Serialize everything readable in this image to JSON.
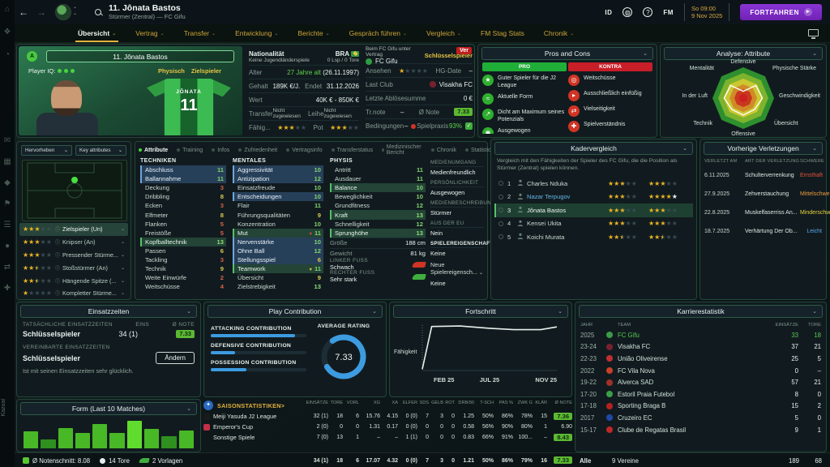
{
  "topbar": {
    "title": "11. Jônata Bastos",
    "subtitle": "Stürmer (Zentral) — FC Gifu",
    "id": "ID",
    "help": "?",
    "fm": "FM",
    "time": "So 09:00",
    "date": "9 Nov 2025",
    "continue_label": "FORTFAHREN"
  },
  "nav": {
    "tabs": [
      {
        "label": "Übersicht",
        "caret": true,
        "active": true
      },
      {
        "label": "Vertrag",
        "caret": true
      },
      {
        "label": "Transfer",
        "caret": true
      },
      {
        "label": "Entwicklung",
        "caret": true
      },
      {
        "label": "Berichte",
        "caret": true
      },
      {
        "label": "Gespräch führen",
        "caret": true
      },
      {
        "label": "Vergleich",
        "caret": true
      },
      {
        "label": "FM Stag Stats",
        "caret": false
      },
      {
        "label": "Chronik",
        "caret": true
      }
    ]
  },
  "player": {
    "name": "11. Jônata Bastos",
    "position_short": "A",
    "iq_label": "Player IQ:",
    "tags": [
      "Physisch",
      "Zielspieler"
    ],
    "shirt_name": "JÔNATA",
    "shirt_number": "11"
  },
  "info": {
    "nationality_label": "Nationalität",
    "nationality_sub": "Keine Jugendländerspiele",
    "nation": "BRA",
    "caps": "0 Lsp / 0 Tore",
    "age_label": "Alter",
    "age": "27 Jahre alt",
    "birth": "(26.11.1997)",
    "wage_label": "Gehalt",
    "wage": "189K €/J.",
    "expires_label": "Endet",
    "expires": "31.12.2026",
    "value_label": "Wert",
    "value": "40K € - 850K €",
    "transfer_label": "Transfer",
    "transfer": "Nicht zugewiesen",
    "loan_label": "Leihe",
    "loan": "Nicht zugewiesen",
    "ability_label": "Fähig...",
    "ability_stars": "GGGEE",
    "potential_label": "Pot",
    "potential_stars": "GGGEE"
  },
  "contract": {
    "header": "Beim FC Gifu unter Vertrag",
    "club": "FC Gifu",
    "status": "Schlüsselspieler",
    "badge": "Ver",
    "rep_label": "Ansehen",
    "rep_stars": "GEEEE",
    "hg_label": "HG-Date",
    "hg_value": "–",
    "lastclub_label": "Last Club",
    "lastclub": "Visakha FC",
    "fee_label": "Letzte Ablösesumme",
    "fee": "0 €",
    "trnote_label": "Tr.note",
    "trnote": "–",
    "avg_label": "Ø Note",
    "avg": "7.33",
    "cond_label": "Bedingungen",
    "cond": "–",
    "match_label": "Spielpraxis",
    "match": "93%",
    "match_icon": "✓"
  },
  "proscons": {
    "title": "Pros and Cons",
    "pro_label": "PRO",
    "kontra_label": "KONTRA",
    "pros": [
      {
        "icon": "star-icon",
        "glyph": "★",
        "text": "Guter Spieler für die J2 League"
      },
      {
        "icon": "form-icon",
        "glyph": "≈",
        "text": "Aktuelle Form"
      },
      {
        "icon": "potential-icon",
        "glyph": "↗",
        "text": "Dicht am Maximum seines Potenzials"
      },
      {
        "icon": "balanced-icon",
        "glyph": "◉",
        "text": "Ausgewogen"
      }
    ],
    "cons": [
      {
        "icon": "longshots-icon",
        "glyph": "◎",
        "text": "Weitschüsse"
      },
      {
        "icon": "foot-icon",
        "glyph": "▸",
        "text": "Ausschließlich einfüßig"
      },
      {
        "icon": "versatility-icon",
        "glyph": "⇄",
        "text": "Vielseitigkeit"
      },
      {
        "icon": "gamesense-icon",
        "glyph": "✚",
        "text": "Spielverständnis"
      }
    ]
  },
  "radar": {
    "title": "Analyse: Attribute",
    "axes": [
      "Defensive",
      "Physische Stärke",
      "Geschwindigkeit",
      "Übersicht",
      "Offensive",
      "Technik",
      "In der Luft",
      "Mentalität"
    ],
    "values": [
      0.22,
      0.58,
      0.62,
      0.52,
      0.55,
      0.52,
      0.62,
      0.58
    ],
    "ring_colors": [
      "#2e8f2e",
      "#7db32d",
      "#cbc832",
      "#d08a28",
      "#c8381e"
    ],
    "center_color": "#cc1f1f"
  },
  "subtabs": [
    {
      "label": "Attribute",
      "active": true
    },
    {
      "label": "Training"
    },
    {
      "label": "Infos"
    },
    {
      "label": "Zufriedenheit"
    },
    {
      "label": "Vertragsinfo"
    },
    {
      "label": "Transferstatus"
    },
    {
      "label": "Medizinischer Bericht"
    },
    {
      "label": "Chronik"
    },
    {
      "label": "Statistic"
    },
    {
      "label": "Analyse"
    }
  ],
  "attrs": {
    "tech_title": "TECHNIKEN",
    "tech": [
      [
        "Abschluss",
        11,
        "b"
      ],
      [
        "Ballannahme",
        11,
        "b"
      ],
      [
        "Deckung",
        3
      ],
      [
        "Dribbling",
        8
      ],
      [
        "Ecken",
        3
      ],
      [
        "Elfmeter",
        8
      ],
      [
        "Flanken",
        5
      ],
      [
        "Freistöße",
        5
      ],
      [
        "Kopfballtechnik",
        13,
        "g"
      ],
      [
        "Passen",
        6
      ],
      [
        "Tackling",
        3
      ],
      [
        "Technik",
        9
      ],
      [
        "Weite Einwürfe",
        2
      ],
      [
        "Weitschüsse",
        4
      ]
    ],
    "ment_title": "MENTALES",
    "ment": [
      [
        "Aggressivität",
        10,
        "b"
      ],
      [
        "Antizipation",
        12,
        "b"
      ],
      [
        "Einsatzfreude",
        10
      ],
      [
        "Entscheidungen",
        10,
        "b"
      ],
      [
        "Flair",
        11
      ],
      [
        "Führungsqualitäten",
        9
      ],
      [
        "Konzentration",
        10
      ],
      [
        "Mut",
        11,
        "g",
        "dr"
      ],
      [
        "Nervenstärke",
        10,
        "b"
      ],
      [
        "Ohne Ball",
        12,
        "b"
      ],
      [
        "Stellungsspiel",
        6,
        "b"
      ],
      [
        "Teamwork",
        11,
        "g",
        "dy"
      ],
      [
        "Übersicht",
        9
      ],
      [
        "Zielstrebigkeit",
        13
      ]
    ],
    "phys_title": "PHYSIS",
    "phys": [
      [
        "Antritt",
        11
      ],
      [
        "Ausdauer",
        11
      ],
      [
        "Balance",
        10,
        "g"
      ],
      [
        "Beweglichkeit",
        10
      ],
      [
        "Grundfitness",
        12
      ],
      [
        "Kraft",
        13,
        "g"
      ],
      [
        "Schnelligkeit",
        12
      ],
      [
        "Sprunghöhe",
        13,
        "g"
      ]
    ],
    "height_label": "Größe",
    "height": "188 cm",
    "weight_label": "Gewicht",
    "weight": "81 kg",
    "leftfoot_label": "LINKER FUSS",
    "leftfoot": "Schwach",
    "rightfoot_label": "RECHTER FUSS",
    "rightfoot": "Sehr stark"
  },
  "media": {
    "rows": [
      [
        "MEDIENUMGANG",
        "Medienfreundlich"
      ],
      [
        "PERSÖNLICHKEIT",
        "Ausgewogen"
      ],
      [
        "MEDIENBESCHREIBUNG",
        "Stürmer"
      ],
      [
        "AUS DER EU",
        "Nein"
      ]
    ],
    "traits_title": "SPIELEREIGENSCHAFTEN",
    "traits_value": "Keine",
    "new_traits_label": "Neue Spielereigensch...",
    "new_traits_value": "Keine"
  },
  "roles": {
    "filter1": "Hervorheben",
    "filter2": "Key attributes",
    "items": [
      {
        "stars": "GGGEE",
        "label": "Zielspieler (Un)",
        "sel": true
      },
      {
        "stars": "GGGEE",
        "label": "Knipser (An)"
      },
      {
        "stars": "GGGEE",
        "label": "Pressender Stürme..."
      },
      {
        "stars": "GGHEE",
        "label": "Stoßstürmer (An)"
      },
      {
        "stars": "GGHEE",
        "label": "Hängende Spitze (..."
      },
      {
        "stars": "GEEEE",
        "label": "Kompletter Stürme..."
      }
    ]
  },
  "squad": {
    "title": "Kadervergleich",
    "desc": "Vergleich mit den Fähigkeiten der Spieler des FC Gifu, die die Position als Stürmer (Zentral) spielen können.",
    "rows": [
      {
        "n": "1",
        "name": "Charles Nduka",
        "fae": "GGGEE",
        "pot": "GGGEE"
      },
      {
        "n": "2",
        "name": "Nazar Terpugov",
        "link": true,
        "fae": "GGGEE",
        "pot": "GGGGW"
      },
      {
        "n": "3",
        "name": "Jônata Bastos",
        "sel": true,
        "fae": "GGGEE",
        "pot": "GGGEE"
      },
      {
        "n": "4",
        "name": "Kensei Ukita",
        "fae": "GGGEE",
        "pot": "GGGEE"
      },
      {
        "n": "5",
        "name": "Koichi Murata",
        "fae": "GGHEE",
        "pot": "GGHEE"
      }
    ]
  },
  "injuries": {
    "title": "Vorherige Verletzungen",
    "h_date": "VERLETZT AM",
    "h_type": "ART DER VERLETZUNG",
    "h_sev": "SCHWERE",
    "rows": [
      {
        "date": "6.11.2025",
        "type": "Schulterverrenkung",
        "sev": "Ernsthaft",
        "color": "#e8503c"
      },
      {
        "date": "27.9.2025",
        "type": "Zehverstauchung",
        "sev": "Mittelschwer",
        "color": "#e89b3c"
      },
      {
        "date": "22.8.2025",
        "type": "Muskelfaserriss An...",
        "sev": "Minderschwer",
        "color": "#e8d23c"
      },
      {
        "date": "18.7.2025",
        "type": "Verhärtung Der Ob...",
        "sev": "Leicht",
        "color": "#58a8e8"
      }
    ]
  },
  "playtime": {
    "title": "Einsatzzeiten",
    "h1": "TATSÄCHLICHE EINSATZZEITEN",
    "h_apps": "EINS",
    "h_note": "Ø NOTE",
    "actual": "Schlüsselspieler",
    "apps": "34 (1)",
    "note": "7.33",
    "h2": "VEREINBARTE EINSATZZEITEN",
    "agreed": "Schlüsselspieler",
    "change_label": "Ändern",
    "comment": "Ist mit seinen Einsatzzeiten sehr glücklich."
  },
  "contrib": {
    "title": "Play Contribution",
    "bars": [
      {
        "label": "ATTACKING CONTRIBUTION",
        "pct": 88
      },
      {
        "label": "DEFENSIVE CONTRIBUTION",
        "pct": 25
      },
      {
        "label": "POSSESSION CONTRIBUTION",
        "pct": 37
      }
    ],
    "avg_label": "AVERAGE RATING",
    "avg": "7.33",
    "ring_pct": 76,
    "accent": "#3d9be0"
  },
  "progress": {
    "title": "Fortschritt",
    "ylabel": "Fähigkeit",
    "xticks": [
      "FEB 25",
      "JUL 25",
      "NOV 25"
    ],
    "points": [
      [
        0,
        0.03
      ],
      [
        0.07,
        0.97
      ],
      [
        0.28,
        0.98
      ],
      [
        0.5,
        0.93
      ],
      [
        0.68,
        0.9
      ],
      [
        0.88,
        0.9
      ],
      [
        1,
        0.96
      ]
    ]
  },
  "career": {
    "title": "Karrierestatistik",
    "h_year": "JAHR",
    "h_team": "TEAM",
    "h_apps": "EINSÄTZE",
    "h_goals": "TORE",
    "rows": [
      {
        "year": "2025",
        "team": "FC Gifu",
        "apps": "33",
        "goals": "18",
        "cur": true,
        "crest": "#3a9c4a"
      },
      {
        "year": "23-24",
        "team": "Visakha FC",
        "apps": "37",
        "goals": "21",
        "crest": "#7a2030"
      },
      {
        "year": "22-23",
        "team": "União Oliveirense",
        "apps": "25",
        "goals": "5",
        "crest": "#c03030"
      },
      {
        "year": "2022",
        "team": "FC Vila Nova",
        "apps": "0",
        "goals": "–",
        "crest": "#c84028"
      },
      {
        "year": "19-22",
        "team": "Alverca SAD",
        "apps": "57",
        "goals": "21",
        "crest": "#a03028"
      },
      {
        "year": "17-20",
        "team": "Estoril Praia Futebol",
        "apps": "8",
        "goals": "0",
        "crest": "#3aa048"
      },
      {
        "year": "17-18",
        "team": "Sporting Braga B",
        "apps": "15",
        "goals": "2",
        "crest": "#b82020"
      },
      {
        "year": "2017",
        "team": "Cruzeiro EC",
        "apps": "5",
        "goals": "0",
        "crest": "#2048a8"
      },
      {
        "year": "15-17",
        "team": "Clube de Regatas Brasil",
        "apps": "9",
        "goals": "1",
        "crest": "#c02828"
      }
    ],
    "f_all": "Alle",
    "f_clubs": "9 Vereine",
    "f_apps": "189",
    "f_goals": "68"
  },
  "season": {
    "title": "SAISONSTATISTIKEN>",
    "headers": [
      "EINSÄTZE",
      "TORE",
      "VORL",
      "XG",
      "XA",
      "ELFER",
      "SDS",
      "GELB",
      "ROT",
      "DRB/90",
      "T-SCH",
      "PAS %",
      "ZWK G",
      "KLÄR",
      "Ø NOTE"
    ],
    "rows": [
      {
        "name": "Meiji Yasuda J2 League",
        "icon": "#1a1a1a",
        "vals": [
          "32 (1)",
          "18",
          "6",
          "15.76",
          "4.15",
          "0 (0)",
          "7",
          "3",
          "0",
          "1.25",
          "50%",
          "86%",
          "78%",
          "15"
        ],
        "note": "7.36",
        "badge": true
      },
      {
        "name": "Emperor's Cup",
        "icon": "#c03048",
        "vals": [
          "2 (0)",
          "0",
          "0",
          "1.31",
          "0.17",
          "0 (0)",
          "0",
          "0",
          "0",
          "0.58",
          "56%",
          "90%",
          "80%",
          "1"
        ],
        "note": "6.90",
        "badge": false
      },
      {
        "name": "Sonstige Spiele",
        "icon": "",
        "vals": [
          "7 (0)",
          "13",
          "1",
          "–",
          "–",
          "1 (1)",
          "0",
          "0",
          "0",
          "0.83",
          "66%",
          "91%",
          "100...",
          "–"
        ],
        "note": "8.43",
        "badge": true
      }
    ],
    "totals": {
      "vals": [
        "34 (1)",
        "18",
        "6",
        "17.07",
        "4.32",
        "0 (0)",
        "7",
        "3",
        "0",
        "1.21",
        "50%",
        "86%",
        "79%",
        "16"
      ],
      "note": "7.33"
    }
  },
  "form": {
    "title": "Form (Last 10 Matches)",
    "values": [
      55,
      30,
      65,
      50,
      78,
      50,
      90,
      62,
      40,
      58
    ]
  },
  "bottom": {
    "avg": "Ø Notenschnitt: 8.08",
    "goals": "14 Tore",
    "assists": "2 Vorlagen"
  },
  "side_label": "Kazual"
}
